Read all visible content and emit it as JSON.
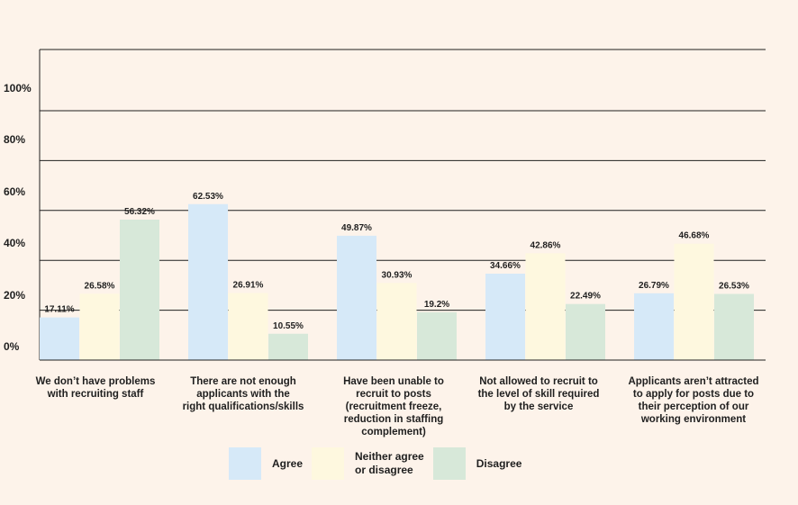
{
  "chart_data": {
    "type": "bar",
    "categories": [
      [
        "We don’t have problems",
        "with recruiting staff"
      ],
      [
        "There are not enough",
        "applicants with the",
        "right qualifications/skills"
      ],
      [
        "Have been unable to",
        "recruit to posts",
        "(recruitment freeze,",
        "reduction in staffing",
        "complement)"
      ],
      [
        "Not allowed to recruit to",
        "the level of skill required",
        "by the service"
      ],
      [
        "Applicants aren’t attracted",
        "to apply for posts due to",
        "their perception of our",
        "working environment"
      ]
    ],
    "series": [
      {
        "name": "Agree",
        "color": "#d6e9f8",
        "values": [
          17.11,
          62.53,
          49.87,
          34.66,
          26.79
        ],
        "labels": [
          "17.11%",
          "62.53%",
          "49.87%",
          "34.66%",
          "26.79%"
        ]
      },
      {
        "name": "Neither agree\nor disagree",
        "color": "#fef8df",
        "values": [
          26.58,
          26.91,
          30.93,
          42.86,
          46.68
        ],
        "labels": [
          "26.58%",
          "26.91%",
          "30.93%",
          "42.86%",
          "46.68%"
        ]
      },
      {
        "name": "Disagree",
        "color": "#d7e8d9",
        "values": [
          56.32,
          10.55,
          19.2,
          22.49,
          26.53
        ],
        "labels": [
          "56.32%",
          "10.55%",
          "19.2%",
          "22.49%",
          "26.53%"
        ]
      }
    ],
    "yticks": [
      "0%",
      "20%",
      "40%",
      "60%",
      "80%",
      "100%"
    ],
    "ylim": [
      0,
      100
    ],
    "grid": true,
    "legend_position": "bottom"
  }
}
